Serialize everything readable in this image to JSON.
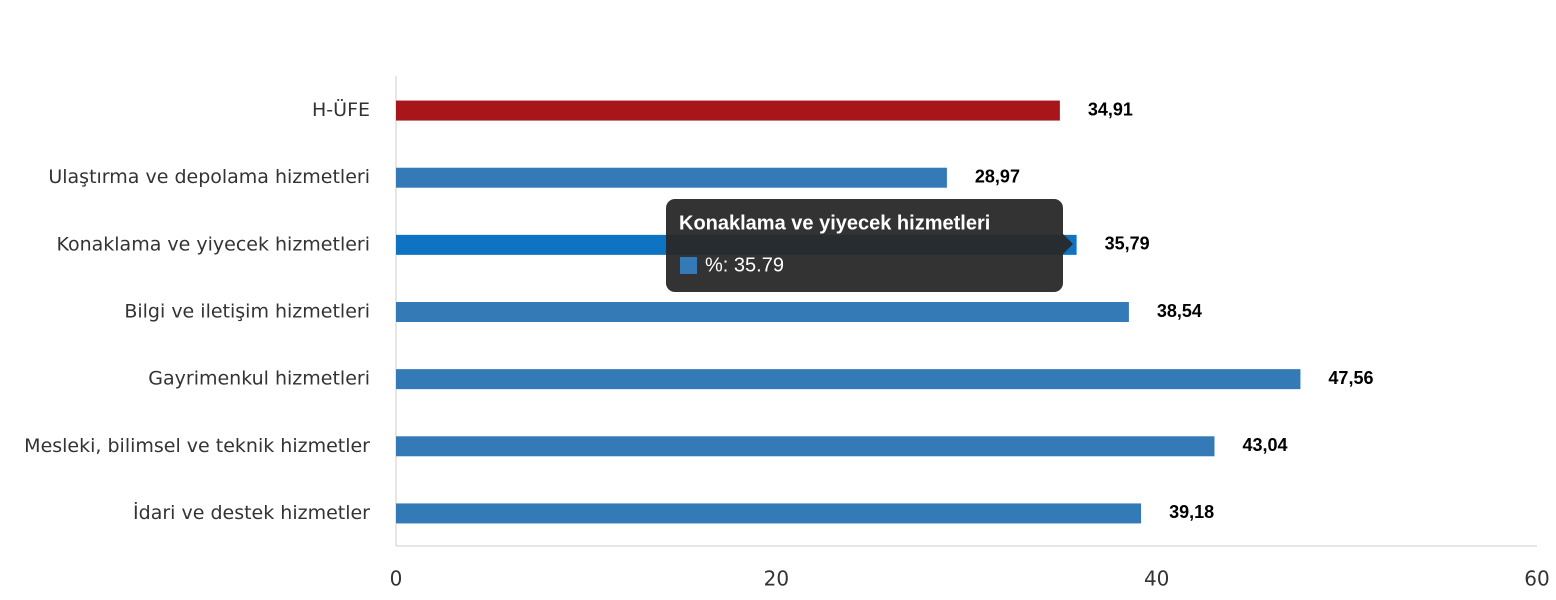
{
  "chart_data": {
    "type": "bar",
    "orientation": "horizontal",
    "categories": [
      "H-ÜFE",
      "Ulaştırma ve depolama hizmetleri",
      "Konaklama ve yiyecek hizmetleri",
      "Bilgi ve iletişim hizmetleri",
      "Gayrimenkul hizmetleri",
      "Mesleki, bilimsel ve teknik hizmetler",
      "İdari ve destek hizmetler"
    ],
    "series": [
      {
        "name": "%",
        "values": [
          34.91,
          28.97,
          35.79,
          38.54,
          47.56,
          43.04,
          39.18
        ],
        "value_labels": [
          "34,91",
          "28,97",
          "35,79",
          "38,54",
          "47,56",
          "43,04",
          "39,18"
        ],
        "colors": [
          "#a8161b",
          "#337ab7",
          "#0e73c2",
          "#337ab7",
          "#337ab7",
          "#337ab7",
          "#337ab7"
        ]
      }
    ],
    "xlim": [
      0,
      60
    ],
    "xticks": [
      0,
      20,
      40,
      60
    ],
    "grid": false,
    "tooltip": {
      "title": "Konaklama ve yiyecek hizmetleri",
      "text": "%: 35.79",
      "color": "#337ab7"
    }
  }
}
